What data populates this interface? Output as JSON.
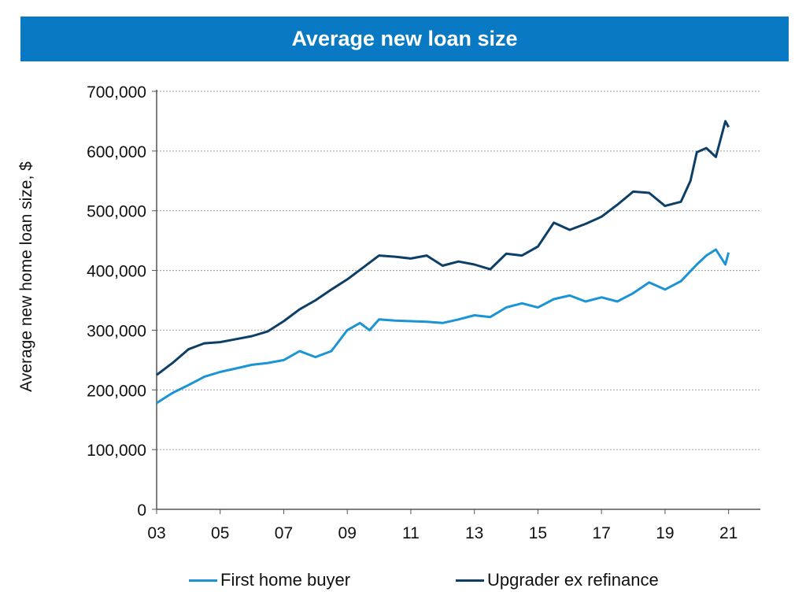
{
  "colors": {
    "title_bg": "#0a79c4",
    "first_home_buyer": "#1a94d4",
    "upgrader": "#0d3f66",
    "grid": "#9a9a9a"
  },
  "chart_data": {
    "type": "line",
    "title": "Average new loan size",
    "xlabel": "",
    "ylabel": "Average new home loan size, $",
    "xlim": [
      2003,
      2022
    ],
    "ylim": [
      0,
      700000
    ],
    "y_ticks": [
      "0",
      "100,000",
      "200,000",
      "300,000",
      "400,000",
      "500,000",
      "600,000",
      "700,000"
    ],
    "y_tick_values": [
      0,
      100000,
      200000,
      300000,
      400000,
      500000,
      600000,
      700000
    ],
    "x_ticks": [
      "03",
      "05",
      "07",
      "09",
      "11",
      "13",
      "15",
      "17",
      "19",
      "21"
    ],
    "x_tick_values": [
      2003,
      2005,
      2007,
      2009,
      2011,
      2013,
      2015,
      2017,
      2019,
      2021
    ],
    "grid": "horizontal dashed",
    "legend_position": "bottom",
    "series": [
      {
        "name": "First home buyer",
        "x": [
          2003.0,
          2003.5,
          2004.0,
          2004.5,
          2005.0,
          2005.5,
          2006.0,
          2006.5,
          2007.0,
          2007.5,
          2008.0,
          2008.5,
          2009.0,
          2009.4,
          2009.7,
          2010.0,
          2010.5,
          2011.0,
          2011.5,
          2012.0,
          2012.5,
          2013.0,
          2013.5,
          2014.0,
          2014.5,
          2015.0,
          2015.5,
          2016.0,
          2016.5,
          2017.0,
          2017.5,
          2018.0,
          2018.5,
          2019.0,
          2019.5,
          2020.0,
          2020.3,
          2020.6,
          2020.9,
          2021.0
        ],
        "values": [
          178000,
          195000,
          208000,
          222000,
          230000,
          236000,
          242000,
          245000,
          250000,
          265000,
          255000,
          265000,
          300000,
          312000,
          300000,
          318000,
          316000,
          315000,
          314000,
          312000,
          318000,
          325000,
          322000,
          338000,
          345000,
          338000,
          352000,
          358000,
          348000,
          355000,
          348000,
          362000,
          380000,
          368000,
          382000,
          410000,
          425000,
          435000,
          410000,
          430000
        ]
      },
      {
        "name": "Upgrader ex refinance",
        "x": [
          2003.0,
          2003.5,
          2004.0,
          2004.5,
          2005.0,
          2005.5,
          2006.0,
          2006.5,
          2007.0,
          2007.5,
          2008.0,
          2008.5,
          2009.0,
          2009.5,
          2010.0,
          2010.5,
          2011.0,
          2011.5,
          2012.0,
          2012.5,
          2013.0,
          2013.5,
          2014.0,
          2014.5,
          2015.0,
          2015.5,
          2016.0,
          2016.5,
          2017.0,
          2017.5,
          2018.0,
          2018.5,
          2019.0,
          2019.5,
          2019.8,
          2020.0,
          2020.3,
          2020.6,
          2020.9,
          2021.0
        ],
        "values": [
          225000,
          245000,
          268000,
          278000,
          280000,
          285000,
          290000,
          298000,
          315000,
          335000,
          350000,
          368000,
          385000,
          405000,
          425000,
          423000,
          420000,
          425000,
          408000,
          415000,
          410000,
          402000,
          428000,
          425000,
          440000,
          480000,
          468000,
          478000,
          490000,
          510000,
          532000,
          530000,
          508000,
          515000,
          550000,
          598000,
          605000,
          590000,
          650000,
          640000
        ]
      }
    ]
  }
}
